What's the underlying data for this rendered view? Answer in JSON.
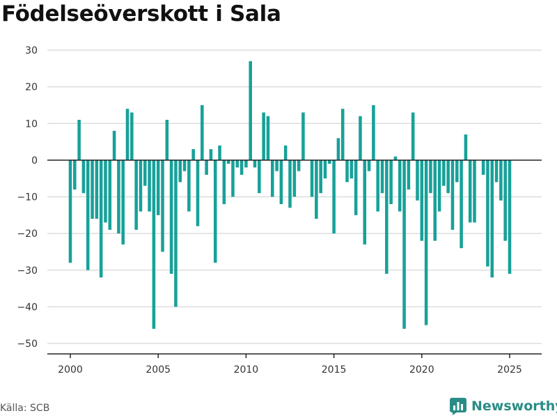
{
  "title": "Födelseöverskott i Sala",
  "source": "Källa: SCB",
  "brand": {
    "name": "Newsworthy",
    "icon": "newsworthy-logo-icon",
    "color": "#2a8c86"
  },
  "colors": {
    "bar": "#17a199",
    "grid": "#dddddd",
    "zero": "#222222"
  },
  "chart_data": {
    "type": "bar",
    "title": "Födelseöverskott i Sala",
    "xlabel": "",
    "ylabel": "",
    "ylim": [
      -50,
      30
    ],
    "xlim": [
      2000,
      2025
    ],
    "y_ticks": [
      30,
      20,
      10,
      0,
      -10,
      -20,
      -30,
      -40,
      -50
    ],
    "y_tick_labels": [
      "30",
      "20",
      "10",
      "0",
      "−10",
      "−20",
      "−30",
      "−40",
      "−50"
    ],
    "x_ticks": [
      2000,
      2005,
      2010,
      2015,
      2020,
      2025
    ],
    "x_tick_labels": [
      "2000",
      "2005",
      "2010",
      "2015",
      "2020",
      "2025"
    ],
    "grid": true,
    "frequency": "quarterly",
    "x_start": "2000 Q1",
    "values": [
      -28,
      -8,
      11,
      -9,
      -30,
      -16,
      -16,
      -32,
      -17,
      -19,
      8,
      -20,
      -23,
      14,
      13,
      -19,
      -14,
      -7,
      -14,
      -46,
      -15,
      -25,
      11,
      -31,
      -40,
      -6,
      -3,
      -14,
      3,
      -18,
      15,
      -4,
      3,
      -28,
      4,
      -12,
      -1,
      -10,
      -2,
      -4,
      -2,
      27,
      -2,
      -9,
      13,
      12,
      -10,
      -3,
      -12,
      4,
      -13,
      -10,
      -3,
      13,
      0,
      -10,
      -16,
      -9,
      -5,
      -1,
      -20,
      6,
      14,
      -6,
      -5,
      -15,
      12,
      -23,
      -3,
      15,
      -14,
      -9,
      -31,
      -12,
      1,
      -14,
      -46,
      -8,
      13,
      -11,
      -22,
      -45,
      -9,
      -22,
      -14,
      -7,
      -9,
      -19,
      -6,
      -24,
      7,
      -17,
      -17,
      0,
      -4,
      -29,
      -32,
      -6,
      -11,
      -22,
      -31
    ]
  }
}
